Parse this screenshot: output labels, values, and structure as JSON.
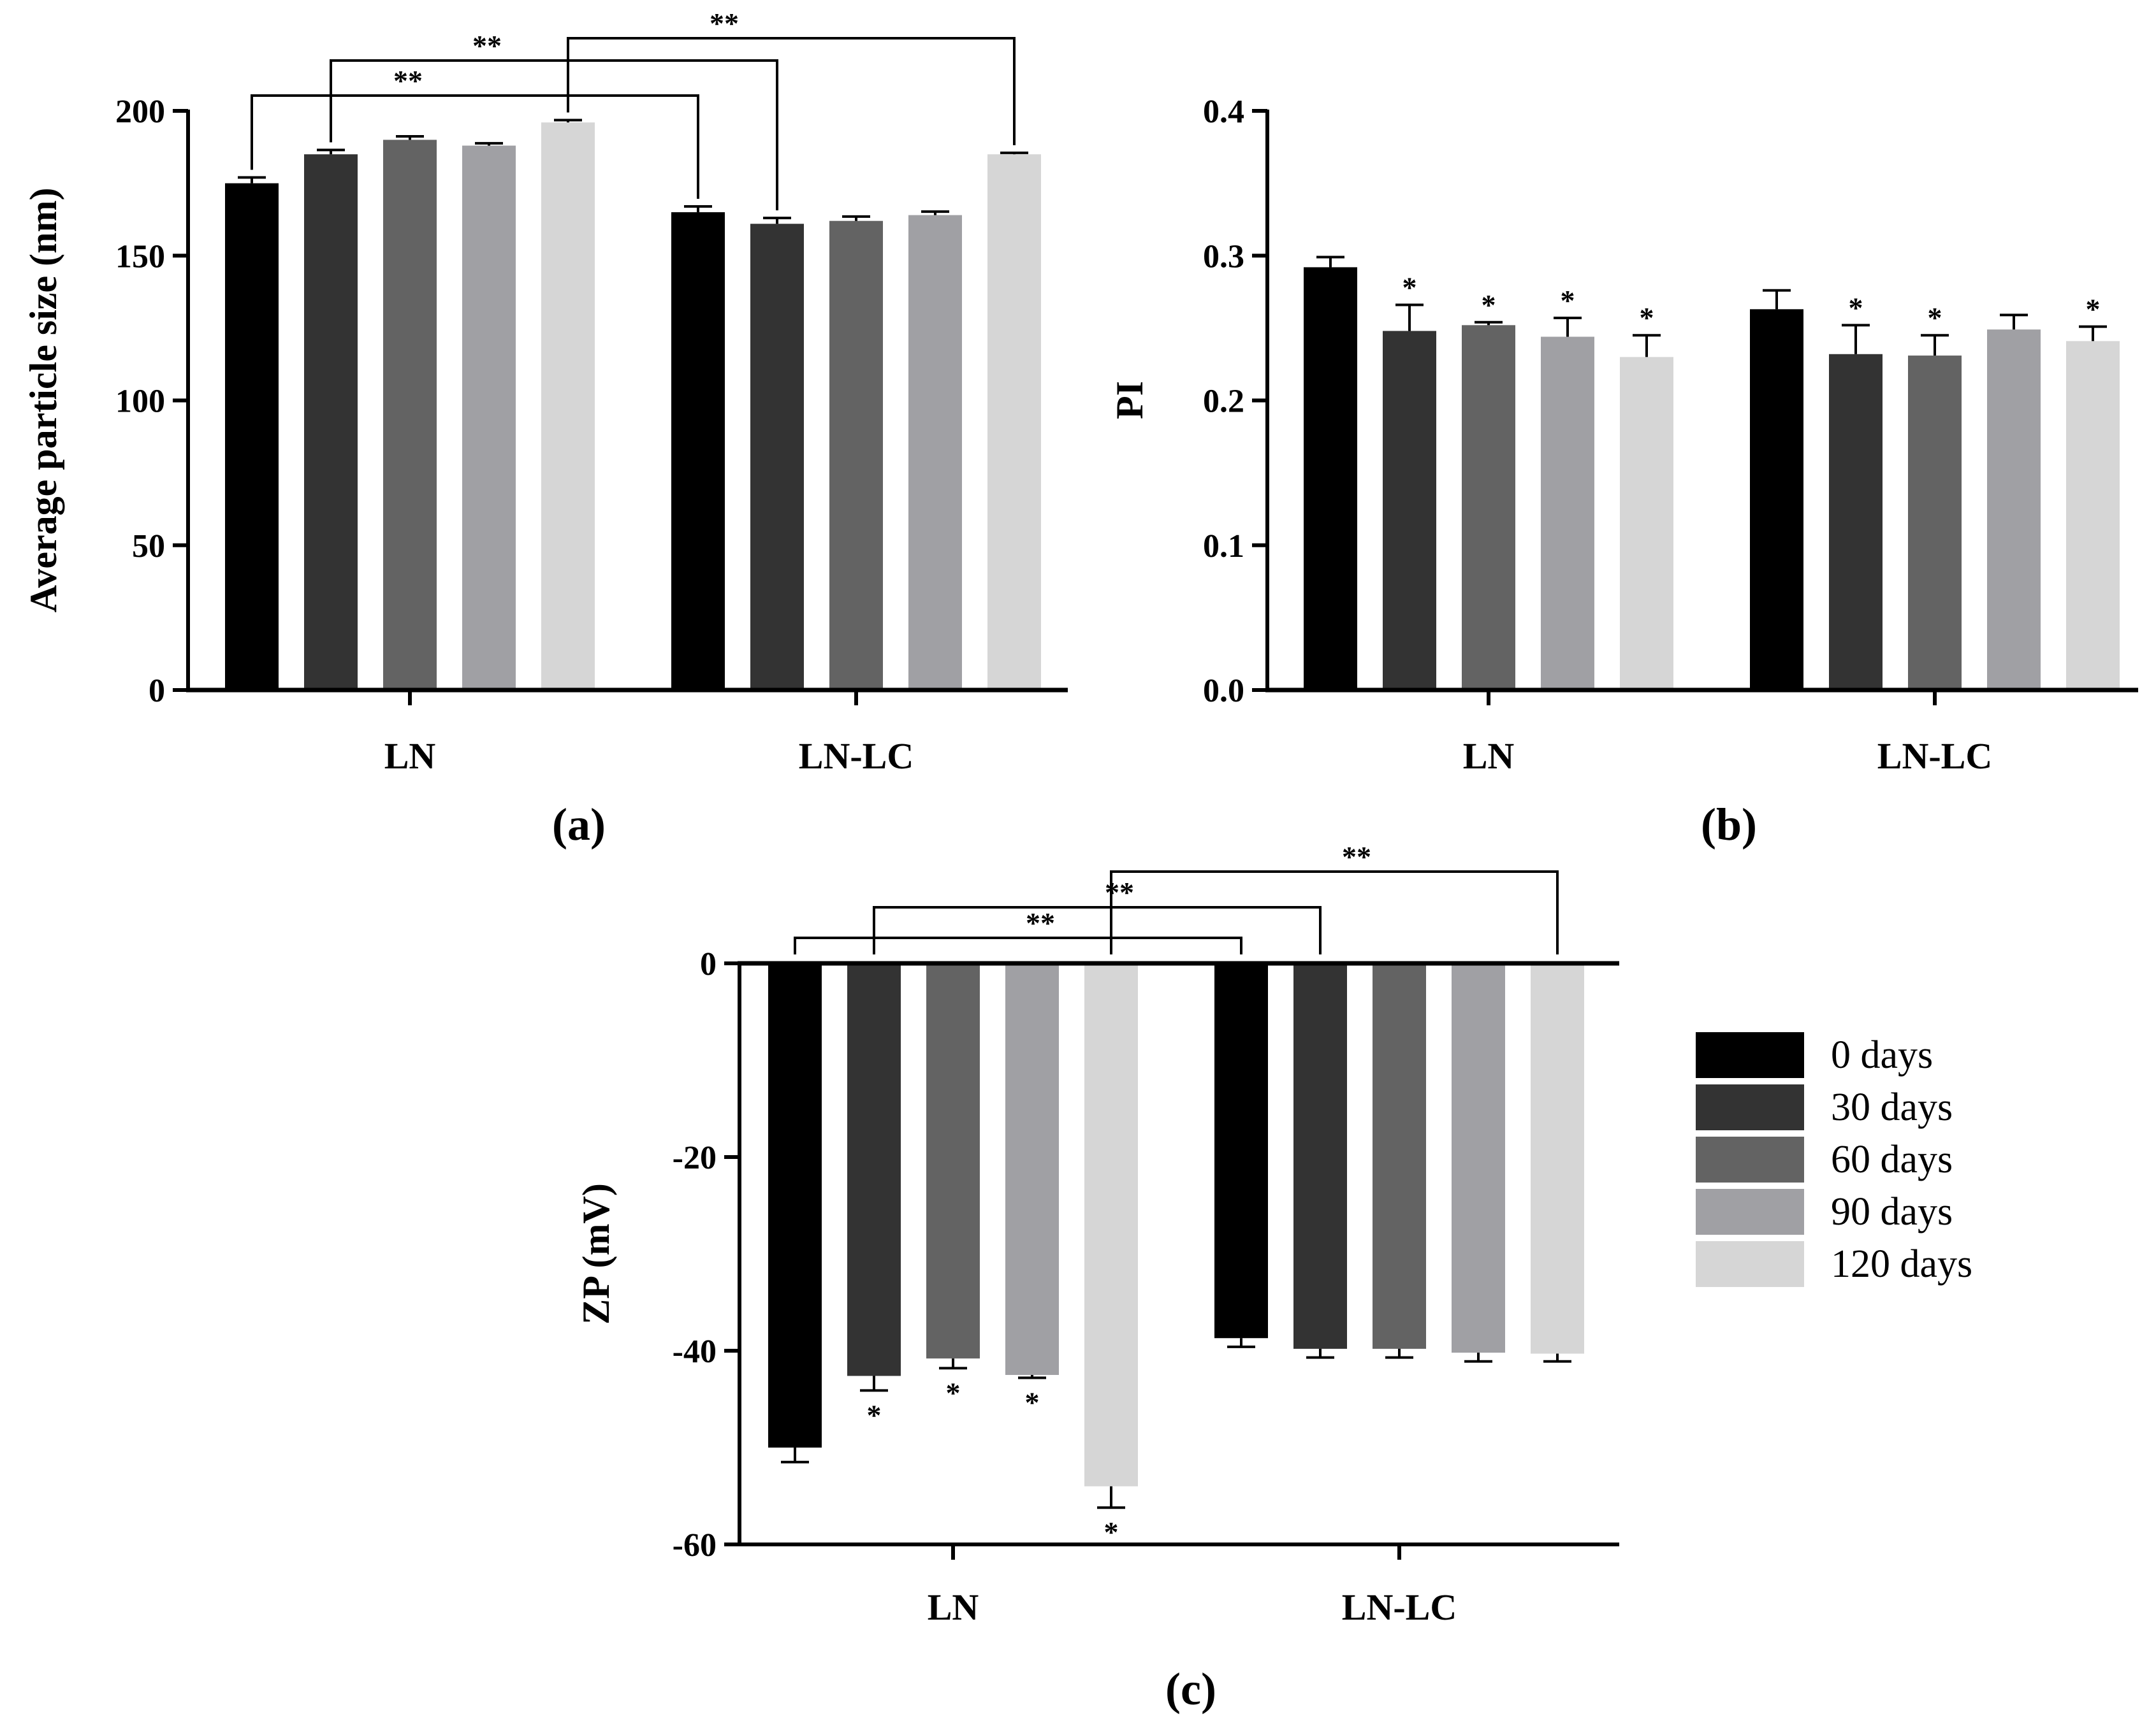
{
  "colors": {
    "series": [
      "#000000",
      "#333333",
      "#636363",
      "#a0a0a4",
      "#d6d6d6"
    ],
    "axis": "#000000",
    "background": "#ffffff"
  },
  "chart_data": [
    {
      "panel": "(a)",
      "type": "bar",
      "title": "",
      "xlabel": "",
      "ylabel": "Average particle size (nm)",
      "ylim": [
        0,
        200
      ],
      "yticks": [
        0,
        50,
        100,
        150,
        200
      ],
      "ytick_labels": [
        "0",
        "50",
        "100",
        "150",
        "200"
      ],
      "categories": [
        "LN",
        "LN-LC"
      ],
      "grid": false,
      "series": [
        {
          "name": "0 days",
          "values": [
            175,
            165
          ],
          "errors": [
            2,
            2
          ]
        },
        {
          "name": "30 days",
          "values": [
            185,
            161
          ],
          "errors": [
            1.5,
            2
          ]
        },
        {
          "name": "60 days",
          "values": [
            190,
            162
          ],
          "errors": [
            1.2,
            1.5
          ]
        },
        {
          "name": "90 days",
          "values": [
            188,
            164
          ],
          "errors": [
            0.8,
            1.2
          ]
        },
        {
          "name": "120 days",
          "values": [
            196,
            185
          ],
          "errors": [
            0.8,
            0.5
          ]
        }
      ],
      "significance": [
        {
          "label": "**",
          "from": [
            0,
            0
          ],
          "to": [
            1,
            0
          ]
        },
        {
          "label": "**",
          "from": [
            0,
            1
          ],
          "to": [
            1,
            1
          ]
        },
        {
          "label": "**",
          "from": [
            0,
            4
          ],
          "to": [
            1,
            4
          ]
        }
      ],
      "bar_marks": []
    },
    {
      "panel": "(b)",
      "type": "bar",
      "title": "",
      "xlabel": "",
      "ylabel": "PI",
      "ylim": [
        0,
        0.4
      ],
      "yticks": [
        0,
        0.1,
        0.2,
        0.3,
        0.4
      ],
      "ytick_labels": [
        "0.0",
        "0.1",
        "0.2",
        "0.3",
        "0.4"
      ],
      "categories": [
        "LN",
        "LN-LC"
      ],
      "grid": false,
      "series": [
        {
          "name": "0 days",
          "values": [
            0.292,
            0.263
          ],
          "errors": [
            0.007,
            0.013
          ]
        },
        {
          "name": "30 days",
          "values": [
            0.248,
            0.232
          ],
          "errors": [
            0.018,
            0.02
          ]
        },
        {
          "name": "60 days",
          "values": [
            0.252,
            0.231
          ],
          "errors": [
            0.002,
            0.014
          ]
        },
        {
          "name": "90 days",
          "values": [
            0.244,
            0.249
          ],
          "errors": [
            0.013,
            0.01
          ]
        },
        {
          "name": "120 days",
          "values": [
            0.23,
            0.241
          ],
          "errors": [
            0.015,
            0.01
          ]
        }
      ],
      "significance": [],
      "bar_marks": [
        {
          "group": 0,
          "series": 1,
          "label": "*"
        },
        {
          "group": 0,
          "series": 2,
          "label": "*"
        },
        {
          "group": 0,
          "series": 3,
          "label": "*"
        },
        {
          "group": 0,
          "series": 4,
          "label": "*"
        },
        {
          "group": 1,
          "series": 1,
          "label": "*"
        },
        {
          "group": 1,
          "series": 2,
          "label": "*"
        },
        {
          "group": 1,
          "series": 4,
          "label": "*"
        }
      ]
    },
    {
      "panel": "(c)",
      "type": "bar",
      "title": "",
      "xlabel": "",
      "ylabel": "ZP (mV)",
      "ylim": [
        -60,
        0
      ],
      "yticks": [
        0,
        -20,
        -40,
        -60
      ],
      "ytick_labels": [
        "0",
        "-20",
        "-40",
        "-60"
      ],
      "categories": [
        "LN",
        "LN-LC"
      ],
      "grid": false,
      "series": [
        {
          "name": "0 days",
          "values": [
            -50,
            -38.7
          ],
          "errors": [
            1.5,
            0.9
          ]
        },
        {
          "name": "30 days",
          "values": [
            -42.6,
            -39.8
          ],
          "errors": [
            1.5,
            0.9
          ]
        },
        {
          "name": "60 days",
          "values": [
            -40.8,
            -39.8
          ],
          "errors": [
            1.0,
            0.9
          ]
        },
        {
          "name": "90 days",
          "values": [
            -42.5,
            -40.2
          ],
          "errors": [
            0.3,
            0.9
          ]
        },
        {
          "name": "120 days",
          "values": [
            -54,
            -40.3
          ],
          "errors": [
            2.2,
            0.8
          ]
        }
      ],
      "significance": [
        {
          "label": "**",
          "from": [
            0,
            0
          ],
          "to": [
            1,
            0
          ]
        },
        {
          "label": "**",
          "from": [
            0,
            1
          ],
          "to": [
            1,
            1
          ]
        },
        {
          "label": "**",
          "from": [
            0,
            4
          ],
          "to": [
            1,
            4
          ]
        }
      ],
      "bar_marks": [
        {
          "group": 0,
          "series": 1,
          "label": "*"
        },
        {
          "group": 0,
          "series": 2,
          "label": "*"
        },
        {
          "group": 0,
          "series": 3,
          "label": "*"
        },
        {
          "group": 0,
          "series": 4,
          "label": "*"
        }
      ]
    }
  ],
  "legend": {
    "position": "right of panel (c)",
    "items": [
      "0 days",
      "30 days",
      "60 days",
      "90 days",
      "120 days"
    ]
  }
}
